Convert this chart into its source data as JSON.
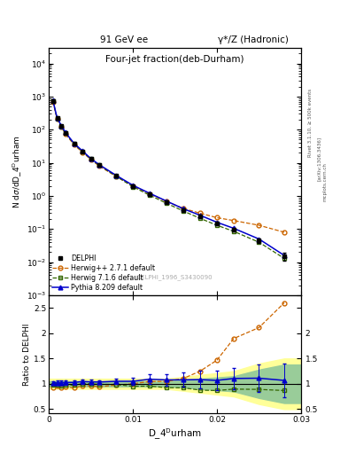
{
  "title_top": "91 GeV ee",
  "title_top_right": "γ*/Z (Hadronic)",
  "plot_title": "Four-jet fraction(deb-Durham)",
  "xlabel": "D_4ᴰurham",
  "ylabel_main": "N dσ/dD_4ᴰurham",
  "ylabel_ratio": "Ratio to DELPHI",
  "watermark": "DELPHI_1996_S3430090",
  "right_label1": "Rivet 3.1.10, ≥ 500k events",
  "right_label2": "[arXiv:1306.3436]",
  "right_label3": "mcplots.cern.ch",
  "delphi_x": [
    0.0005,
    0.001,
    0.0015,
    0.002,
    0.003,
    0.004,
    0.005,
    0.006,
    0.008,
    0.01,
    0.012,
    0.014,
    0.016,
    0.018,
    0.02,
    0.022,
    0.025,
    0.028
  ],
  "delphi_y": [
    750,
    220,
    130,
    80,
    38,
    22,
    13,
    8.5,
    4.0,
    2.0,
    1.1,
    0.65,
    0.38,
    0.24,
    0.15,
    0.095,
    0.045,
    0.015
  ],
  "delphi_yerr_frac_lo": [
    0.12,
    0.08,
    0.07,
    0.06,
    0.05,
    0.05,
    0.05,
    0.05,
    0.06,
    0.07,
    0.08,
    0.09,
    0.1,
    0.11,
    0.12,
    0.13,
    0.17,
    0.25
  ],
  "delphi_yerr_frac_hi": [
    0.12,
    0.08,
    0.07,
    0.06,
    0.05,
    0.05,
    0.05,
    0.05,
    0.06,
    0.07,
    0.08,
    0.09,
    0.1,
    0.11,
    0.12,
    0.13,
    0.17,
    0.25
  ],
  "herwig_x": [
    0.0005,
    0.001,
    0.0015,
    0.002,
    0.003,
    0.004,
    0.005,
    0.006,
    0.008,
    0.01,
    0.012,
    0.014,
    0.016,
    0.018,
    0.02,
    0.022,
    0.025,
    0.028
  ],
  "herwig_y": [
    700,
    210,
    120,
    75,
    35,
    21,
    12.5,
    8.0,
    3.9,
    2.0,
    1.15,
    0.68,
    0.42,
    0.3,
    0.22,
    0.18,
    0.13,
    0.08
  ],
  "herwig716_x": [
    0.0005,
    0.001,
    0.0015,
    0.002,
    0.003,
    0.004,
    0.005,
    0.006,
    0.008,
    0.01,
    0.012,
    0.014,
    0.016,
    0.018,
    0.02,
    0.022,
    0.025,
    0.028
  ],
  "herwig716_y": [
    740,
    215,
    125,
    78,
    37,
    22,
    13,
    8.4,
    3.95,
    1.9,
    1.05,
    0.6,
    0.35,
    0.21,
    0.13,
    0.085,
    0.04,
    0.013
  ],
  "pythia_x": [
    0.0005,
    0.001,
    0.0015,
    0.002,
    0.003,
    0.004,
    0.005,
    0.006,
    0.008,
    0.01,
    0.012,
    0.014,
    0.016,
    0.018,
    0.02,
    0.022,
    0.025,
    0.028
  ],
  "pythia_y": [
    760,
    225,
    133,
    82,
    39,
    23,
    13.5,
    8.8,
    4.2,
    2.1,
    1.2,
    0.7,
    0.41,
    0.26,
    0.16,
    0.105,
    0.05,
    0.016
  ],
  "ratio_herwig_y": [
    0.933,
    0.955,
    0.923,
    0.938,
    0.921,
    0.955,
    0.962,
    0.941,
    0.975,
    1.0,
    1.045,
    1.046,
    1.105,
    1.25,
    1.467,
    1.895,
    2.111,
    2.6
  ],
  "ratio_herwig716_y": [
    0.987,
    0.977,
    0.962,
    0.975,
    0.974,
    1.0,
    1.0,
    0.988,
    0.988,
    0.95,
    0.955,
    0.923,
    0.921,
    0.875,
    0.867,
    0.895,
    0.889,
    0.867
  ],
  "ratio_pythia_y": [
    1.013,
    1.023,
    1.023,
    1.025,
    1.026,
    1.045,
    1.038,
    1.035,
    1.05,
    1.05,
    1.091,
    1.077,
    1.079,
    1.083,
    1.067,
    1.105,
    1.111,
    1.067
  ],
  "ratio_pythia_yerr": [
    0.04,
    0.04,
    0.04,
    0.04,
    0.04,
    0.04,
    0.04,
    0.04,
    0.06,
    0.07,
    0.09,
    0.11,
    0.14,
    0.17,
    0.19,
    0.21,
    0.27,
    0.33
  ],
  "band_yellow_x": [
    0.0,
    0.014,
    0.022,
    0.025,
    0.028,
    0.03
  ],
  "band_yellow_lo": [
    0.9,
    0.9,
    0.75,
    0.6,
    0.5,
    0.5
  ],
  "band_yellow_hi": [
    1.1,
    1.1,
    1.25,
    1.4,
    1.5,
    1.5
  ],
  "band_green_x": [
    0.0,
    0.014,
    0.022,
    0.025,
    0.028,
    0.03
  ],
  "band_green_lo": [
    0.95,
    0.95,
    0.85,
    0.72,
    0.62,
    0.62
  ],
  "band_green_hi": [
    1.05,
    1.05,
    1.15,
    1.28,
    1.38,
    1.38
  ],
  "color_delphi": "#000000",
  "color_herwig": "#cc6600",
  "color_herwig716": "#336600",
  "color_pythia": "#0000cc",
  "color_yellow": "#ffff99",
  "color_green": "#99cc99",
  "xlim": [
    0.0,
    0.03
  ],
  "ylim_main": [
    0.001,
    30000.0
  ],
  "ylim_ratio": [
    0.42,
    2.75
  ],
  "yticks_ratio": [
    0.5,
    1.0,
    1.5,
    2.0,
    2.5
  ],
  "ytick_ratio_labels": [
    "0.5",
    "1",
    "1.5",
    "2",
    "2.5"
  ],
  "ytick_ratio_right_labels": [
    "0.5",
    "1",
    "1.5",
    "2",
    ""
  ]
}
